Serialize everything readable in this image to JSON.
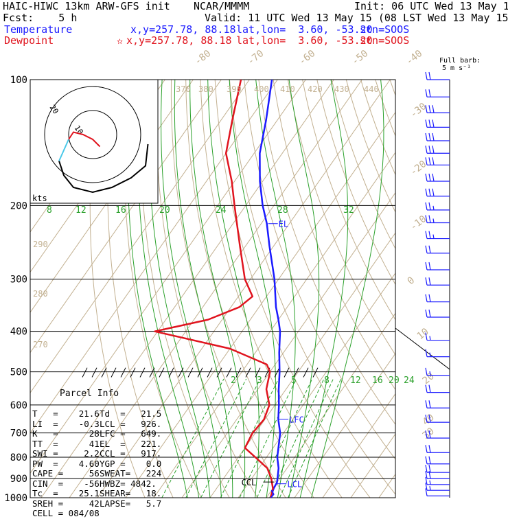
{
  "header": {
    "title": "HAIC-HIWC 13km ARW-GFS init",
    "model": "NCAR/MMMM",
    "init": "Init: 06 UTC Wed 13 May 15",
    "fcst": "Fcst:    5 h",
    "valid": "Valid: 11 UTC Wed 13 May 15 (08 LST Wed 13 May 15)",
    "temp_line": {
      "label": "Temperature",
      "xy": "x,y=257.78, 88.18",
      "latlon": "lat,lon=  3.60, -53.20",
      "stn": "stn=SOOS",
      "color": "#1a1aff"
    },
    "dew_line": {
      "label": "Dewpoint",
      "marker": "✫",
      "xy": "x,y=257.78, 88.18",
      "latlon": "lat,lon=  3.60, -53.20",
      "stn": "stn=SOOS",
      "color": "#e0141e"
    }
  },
  "barb_legend": {
    "line1": "Full barb:",
    "line2": "5 m s⁻¹"
  },
  "hodograph": {
    "kts_label": "kts",
    "ring_labels": [
      "20",
      "10"
    ]
  },
  "parcel_info": {
    "title": "Parcel Info",
    "rows": [
      [
        "T   =    21.6",
        "Td  =   21.5"
      ],
      [
        "LI  =    -0.3",
        "LCL =   926."
      ],
      [
        "K   =      28",
        "LFC =   649."
      ],
      [
        "TT  =      41",
        "EL  =   221."
      ],
      [
        "SWI =     2.2",
        "CCL =   917."
      ],
      [
        "PW  =    4.60",
        "YGP =    0.0"
      ],
      [
        "CAPE =     56",
        "SWEAT=   224"
      ],
      [
        "CIN  =    -56",
        "HWBZ= 4842."
      ],
      [
        "Tc  =    25.1",
        "SHEAR=   18."
      ],
      [
        "SREH =     42",
        "LAPSE=   5.7"
      ],
      [
        "CELL = 084/08",
        ""
      ]
    ]
  },
  "chart_data": {
    "type": "line",
    "ylabel": "",
    "xlabel": "",
    "y_scale": "log",
    "ylim": [
      1000,
      100
    ],
    "pressure_ticks": [
      100,
      200,
      300,
      400,
      500,
      600,
      700,
      800,
      900,
      1000
    ],
    "isotherm_labels": [
      "-80",
      "-70",
      "-60",
      "-50",
      "-40",
      "-30",
      "-20",
      "-10",
      "0",
      "10",
      "20",
      "30",
      "40"
    ],
    "theta_labels": [
      "370",
      "380",
      "390",
      "400",
      "410",
      "420",
      "430",
      "440",
      "290",
      "280",
      "270"
    ],
    "mixing_ratio_upper": [
      "8",
      "12",
      "16",
      "20",
      "24",
      "28",
      "32"
    ],
    "mixing_ratio_lower": [
      "2",
      "3",
      "5",
      "8",
      "12",
      "16",
      "20",
      "24"
    ],
    "annotations": {
      "el": "EL",
      "lfc": "LFC",
      "ccl": "CCL",
      "lcl": "LCL"
    },
    "series": [
      {
        "name": "Temperature",
        "color": "#1a1aff",
        "points": [
          [
            1000,
            21.6
          ],
          [
            980,
            21.0
          ],
          [
            950,
            20.3
          ],
          [
            920,
            20.0
          ],
          [
            900,
            19.2
          ],
          [
            850,
            17.0
          ],
          [
            800,
            13.8
          ],
          [
            750,
            11.4
          ],
          [
            700,
            8.8
          ],
          [
            650,
            4.8
          ],
          [
            600,
            1.4
          ],
          [
            550,
            -2.6
          ],
          [
            500,
            -6.6
          ],
          [
            450,
            -11.5
          ],
          [
            400,
            -16.5
          ],
          [
            375,
            -20.0
          ],
          [
            350,
            -24.0
          ],
          [
            300,
            -31.5
          ],
          [
            250,
            -41.5
          ],
          [
            221,
            -48.0
          ],
          [
            200,
            -54.0
          ],
          [
            175,
            -61.0
          ],
          [
            150,
            -68.0
          ],
          [
            125,
            -74.0
          ],
          [
            100,
            -82.0
          ]
        ]
      },
      {
        "name": "Dewpoint",
        "color": "#e0141e",
        "points": [
          [
            1000,
            21.5
          ],
          [
            950,
            20.0
          ],
          [
            900,
            17.0
          ],
          [
            850,
            13.0
          ],
          [
            800,
            6.0
          ],
          [
            760,
            0.0
          ],
          [
            700,
            -1.0
          ],
          [
            650,
            -0.3
          ],
          [
            600,
            -2.0
          ],
          [
            550,
            -7.0
          ],
          [
            500,
            -10.0
          ],
          [
            480,
            -13.0
          ],
          [
            440,
            -30.0
          ],
          [
            400,
            -61.0
          ],
          [
            375,
            -45.0
          ],
          [
            350,
            -37.0
          ],
          [
            330,
            -35.0
          ],
          [
            300,
            -42.0
          ],
          [
            250,
            -52.0
          ],
          [
            200,
            -64.0
          ],
          [
            175,
            -71.0
          ],
          [
            150,
            -80.0
          ],
          [
            125,
            -86.0
          ],
          [
            100,
            -93.0
          ]
        ]
      }
    ],
    "wind_barbs": [
      {
        "p": 100,
        "kts": 20
      },
      {
        "p": 110,
        "kts": 20
      },
      {
        "p": 120,
        "kts": 30
      },
      {
        "p": 130,
        "kts": 30
      },
      {
        "p": 140,
        "kts": 30
      },
      {
        "p": 150,
        "kts": 30
      },
      {
        "p": 160,
        "kts": 30
      },
      {
        "p": 175,
        "kts": 30
      },
      {
        "p": 190,
        "kts": 30
      },
      {
        "p": 205,
        "kts": 25
      },
      {
        "p": 220,
        "kts": 25
      },
      {
        "p": 240,
        "kts": 25
      },
      {
        "p": 260,
        "kts": 20
      },
      {
        "p": 285,
        "kts": 20
      },
      {
        "p": 310,
        "kts": 20
      },
      {
        "p": 340,
        "kts": 20
      },
      {
        "p": 370,
        "kts": 20
      },
      {
        "p": 420,
        "kts": 15
      },
      {
        "p": 460,
        "kts": 15
      },
      {
        "p": 510,
        "kts": 15
      },
      {
        "p": 560,
        "kts": 20
      },
      {
        "p": 610,
        "kts": 20
      },
      {
        "p": 660,
        "kts": 20
      },
      {
        "p": 720,
        "kts": 20
      },
      {
        "p": 780,
        "kts": 20
      },
      {
        "p": 830,
        "kts": 20
      },
      {
        "p": 870,
        "kts": 20
      },
      {
        "p": 900,
        "kts": 20
      },
      {
        "p": 930,
        "kts": 15
      },
      {
        "p": 960,
        "kts": 15
      },
      {
        "p": 990,
        "kts": 10
      }
    ],
    "hodograph_trace": [
      [
        -14,
        11
      ],
      [
        -12,
        17
      ],
      [
        -8,
        22
      ],
      [
        0,
        24
      ],
      [
        8,
        22
      ],
      [
        16,
        18
      ],
      [
        22,
        13
      ],
      [
        23,
        4
      ]
    ],
    "hodograph_low": [
      [
        -14,
        11
      ],
      [
        -10,
        2
      ]
    ],
    "hodograph_red": [
      [
        -10,
        2
      ],
      [
        -8,
        -1
      ],
      [
        -4,
        0
      ],
      [
        0,
        2
      ],
      [
        3,
        5
      ]
    ]
  }
}
